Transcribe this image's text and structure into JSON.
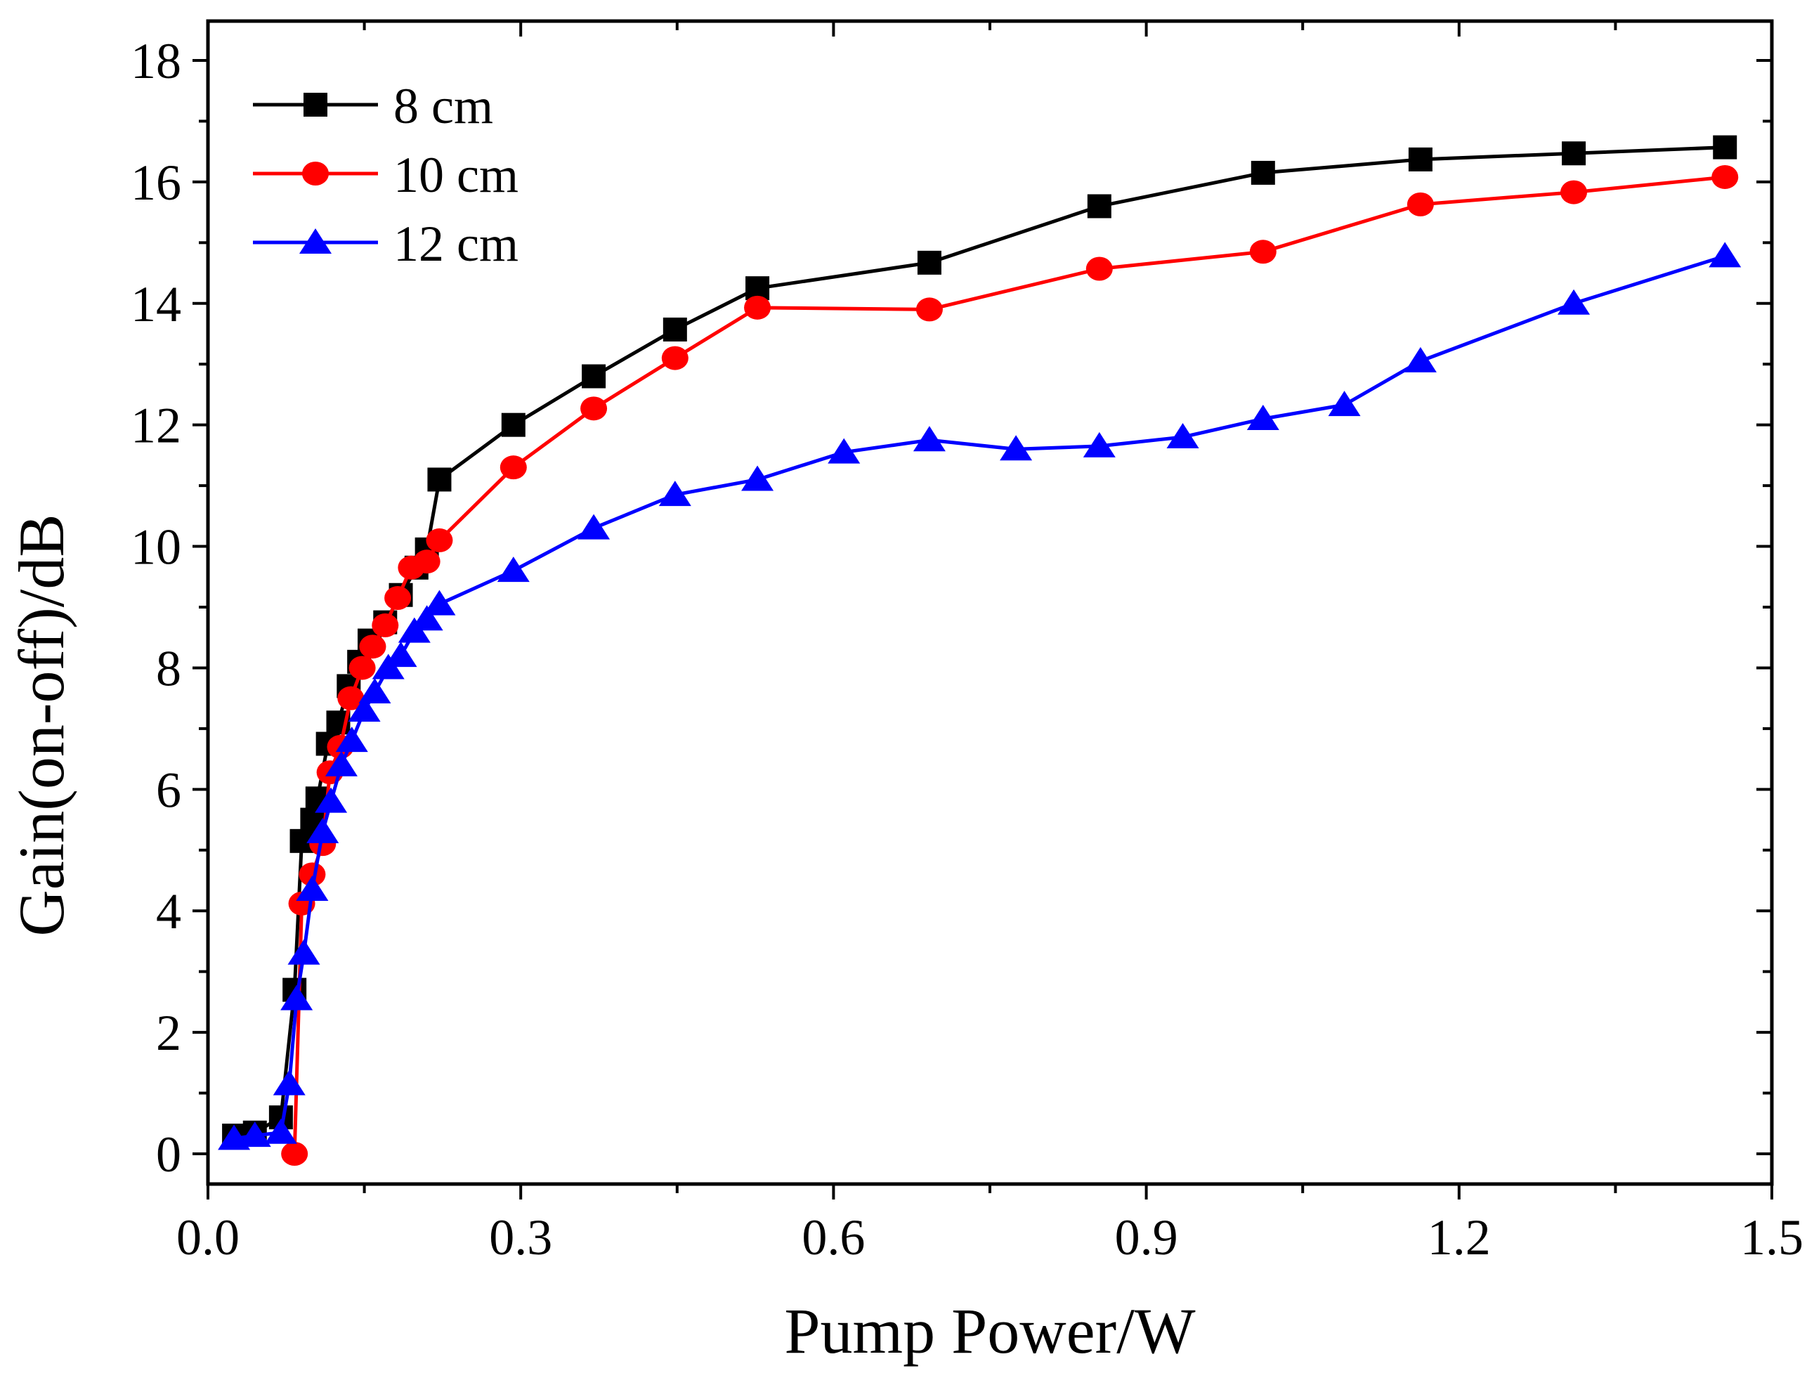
{
  "chart_data": {
    "type": "line",
    "title": "",
    "xlabel": "Pump Power/W",
    "ylabel": "Gain(on-off)/dB",
    "xlim": [
      0,
      1.5
    ],
    "ylim": [
      -0.5,
      19
    ],
    "xticks": [
      "0.0",
      "0.3",
      "0.6",
      "0.9",
      "1.2",
      "1.5"
    ],
    "xtick_values": [
      0,
      0.3,
      0.6,
      0.9,
      1.2,
      1.5
    ],
    "yticks": [
      "0",
      "2",
      "4",
      "6",
      "8",
      "10",
      "12",
      "14",
      "16",
      "18"
    ],
    "ytick_values": [
      0,
      2,
      4,
      6,
      8,
      10,
      12,
      14,
      16,
      18
    ],
    "grid": false,
    "legend_position": "top-left",
    "series": [
      {
        "name": "8 cm",
        "color": "#000000",
        "marker": "square",
        "x": [
          0.025,
          0.045,
          0.07,
          0.083,
          0.09,
          0.1,
          0.105,
          0.115,
          0.125,
          0.135,
          0.145,
          0.155,
          0.17,
          0.185,
          0.2,
          0.21,
          0.222,
          0.293,
          0.37,
          0.448,
          0.527,
          0.692,
          0.855,
          1.012,
          1.163,
          1.31,
          1.455
        ],
        "y": [
          0.3,
          0.35,
          0.6,
          2.7,
          5.15,
          5.5,
          5.85,
          6.75,
          7.1,
          7.7,
          8.1,
          8.45,
          8.75,
          9.2,
          9.65,
          9.95,
          11.1,
          12.0,
          12.8,
          13.57,
          14.25,
          14.67,
          15.6,
          16.15,
          16.37,
          16.47,
          16.57
        ]
      },
      {
        "name": "10 cm",
        "color": "#ff0000",
        "marker": "circle",
        "x": [
          0.083,
          0.09,
          0.1,
          0.11,
          0.117,
          0.127,
          0.137,
          0.148,
          0.158,
          0.17,
          0.182,
          0.195,
          0.21,
          0.222,
          0.293,
          0.37,
          0.448,
          0.527,
          0.692,
          0.855,
          1.012,
          1.163,
          1.31,
          1.455
        ],
        "y": [
          0.0,
          4.12,
          4.6,
          5.1,
          6.28,
          6.7,
          7.5,
          8.0,
          8.35,
          8.7,
          9.15,
          9.65,
          9.75,
          10.1,
          11.3,
          12.27,
          13.1,
          13.93,
          13.9,
          14.57,
          14.85,
          15.63,
          15.83,
          16.08
        ]
      },
      {
        "name": "12 cm",
        "color": "#0000ff",
        "marker": "triangle",
        "x": [
          0.025,
          0.045,
          0.07,
          0.078,
          0.085,
          0.092,
          0.1,
          0.11,
          0.118,
          0.128,
          0.138,
          0.15,
          0.16,
          0.173,
          0.185,
          0.198,
          0.21,
          0.222,
          0.293,
          0.37,
          0.448,
          0.527,
          0.61,
          0.692,
          0.775,
          0.855,
          0.935,
          1.012,
          1.09,
          1.163,
          1.31,
          1.455
        ],
        "y": [
          0.25,
          0.3,
          0.35,
          1.15,
          2.55,
          3.3,
          4.35,
          5.3,
          5.8,
          6.4,
          6.8,
          7.3,
          7.6,
          8.0,
          8.2,
          8.6,
          8.8,
          9.05,
          9.6,
          10.3,
          10.85,
          11.1,
          11.55,
          11.75,
          11.6,
          11.65,
          11.8,
          12.1,
          12.33,
          13.05,
          14.0,
          14.78
        ]
      }
    ]
  }
}
